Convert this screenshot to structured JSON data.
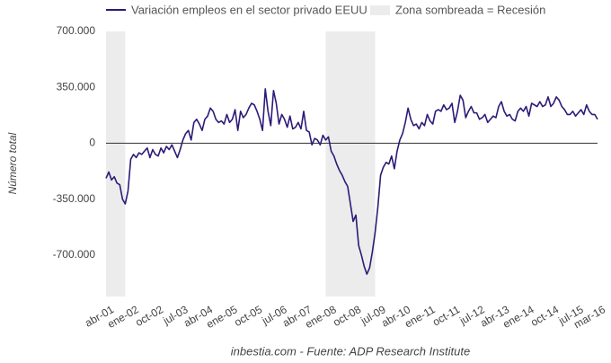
{
  "chart_data": {
    "type": "line",
    "y_label": "Número total",
    "footer": "inbestia.com - Fuente: ADP Research Institute",
    "categories": [
      "abr-01",
      null,
      null,
      null,
      null,
      null,
      null,
      null,
      null,
      "ene-02",
      null,
      null,
      null,
      null,
      null,
      null,
      null,
      null,
      "oct-02",
      null,
      null,
      null,
      null,
      null,
      null,
      null,
      null,
      "jul-03",
      null,
      null,
      null,
      null,
      null,
      null,
      null,
      null,
      "abr-04",
      null,
      null,
      null,
      null,
      null,
      null,
      null,
      null,
      "ene-05",
      null,
      null,
      null,
      null,
      null,
      null,
      null,
      null,
      "oct-05",
      null,
      null,
      null,
      null,
      null,
      null,
      null,
      null,
      "jul-06",
      null,
      null,
      null,
      null,
      null,
      null,
      null,
      null,
      "abr-07",
      null,
      null,
      null,
      null,
      null,
      null,
      null,
      null,
      "ene-08",
      null,
      null,
      null,
      null,
      null,
      null,
      null,
      null,
      "oct-08",
      null,
      null,
      null,
      null,
      null,
      null,
      null,
      null,
      "jul-09",
      null,
      null,
      null,
      null,
      null,
      null,
      null,
      null,
      "abr-10",
      null,
      null,
      null,
      null,
      null,
      null,
      null,
      null,
      "ene-11",
      null,
      null,
      null,
      null,
      null,
      null,
      null,
      null,
      "oct-11",
      null,
      null,
      null,
      null,
      null,
      null,
      null,
      null,
      "jul-12",
      null,
      null,
      null,
      null,
      null,
      null,
      null,
      null,
      "abr-13",
      null,
      null,
      null,
      null,
      null,
      null,
      null,
      null,
      "ene-14",
      null,
      null,
      null,
      null,
      null,
      null,
      null,
      null,
      "oct-14",
      null,
      null,
      null,
      null,
      null,
      null,
      null,
      null,
      "jul-15",
      null,
      null,
      null,
      null,
      null,
      null,
      null,
      "mar-16"
    ],
    "series": [
      {
        "name": "Variación empleos en el sector privado EEUU",
        "color": "#2e1a78",
        "values": [
          -220000,
          -180000,
          -230000,
          -210000,
          -250000,
          -260000,
          -350000,
          -380000,
          -300000,
          -100000,
          -70000,
          -90000,
          -60000,
          -70000,
          -50000,
          -30000,
          -90000,
          -40000,
          -70000,
          -80000,
          -30000,
          -60000,
          -20000,
          -40000,
          -10000,
          -50000,
          -90000,
          -40000,
          20000,
          60000,
          80000,
          20000,
          130000,
          150000,
          120000,
          80000,
          150000,
          170000,
          220000,
          200000,
          150000,
          130000,
          140000,
          120000,
          180000,
          130000,
          150000,
          210000,
          80000,
          200000,
          160000,
          180000,
          220000,
          250000,
          240000,
          200000,
          150000,
          80000,
          340000,
          200000,
          110000,
          330000,
          250000,
          120000,
          180000,
          150000,
          100000,
          170000,
          90000,
          100000,
          130000,
          90000,
          200000,
          80000,
          70000,
          -10000,
          30000,
          20000,
          -10000,
          50000,
          20000,
          40000,
          -50000,
          -80000,
          -130000,
          -170000,
          -200000,
          -240000,
          -270000,
          -380000,
          -490000,
          -450000,
          -640000,
          -700000,
          -770000,
          -820000,
          -780000,
          -680000,
          -560000,
          -400000,
          -200000,
          -150000,
          -120000,
          -130000,
          -80000,
          -160000,
          -50000,
          20000,
          60000,
          130000,
          220000,
          150000,
          110000,
          120000,
          90000,
          130000,
          110000,
          180000,
          140000,
          120000,
          200000,
          210000,
          200000,
          240000,
          210000,
          220000,
          250000,
          130000,
          200000,
          300000,
          270000,
          160000,
          200000,
          230000,
          190000,
          190000,
          150000,
          160000,
          180000,
          130000,
          150000,
          170000,
          160000,
          230000,
          260000,
          200000,
          170000,
          180000,
          150000,
          140000,
          200000,
          220000,
          200000,
          230000,
          170000,
          250000,
          240000,
          230000,
          260000,
          230000,
          240000,
          290000,
          230000,
          250000,
          290000,
          270000,
          230000,
          210000,
          180000,
          180000,
          200000,
          170000,
          190000,
          210000,
          180000,
          240000,
          200000,
          180000,
          180000,
          150000
        ]
      }
    ],
    "shade": {
      "name": "Zona sombreada = Recesión",
      "color": "#ececec",
      "ranges": [
        [
          0,
          7
        ],
        [
          80,
          98
        ]
      ]
    },
    "ylim": [
      -960000,
      700000
    ],
    "yticks": [
      {
        "value": 700000,
        "label": "700.000"
      },
      {
        "value": 350000,
        "label": "350.000"
      },
      0,
      {
        "value": -350000,
        "label": "-350.000"
      },
      {
        "value": -700000,
        "label": "-700.000"
      }
    ],
    "zero_line": true,
    "grid": false
  }
}
